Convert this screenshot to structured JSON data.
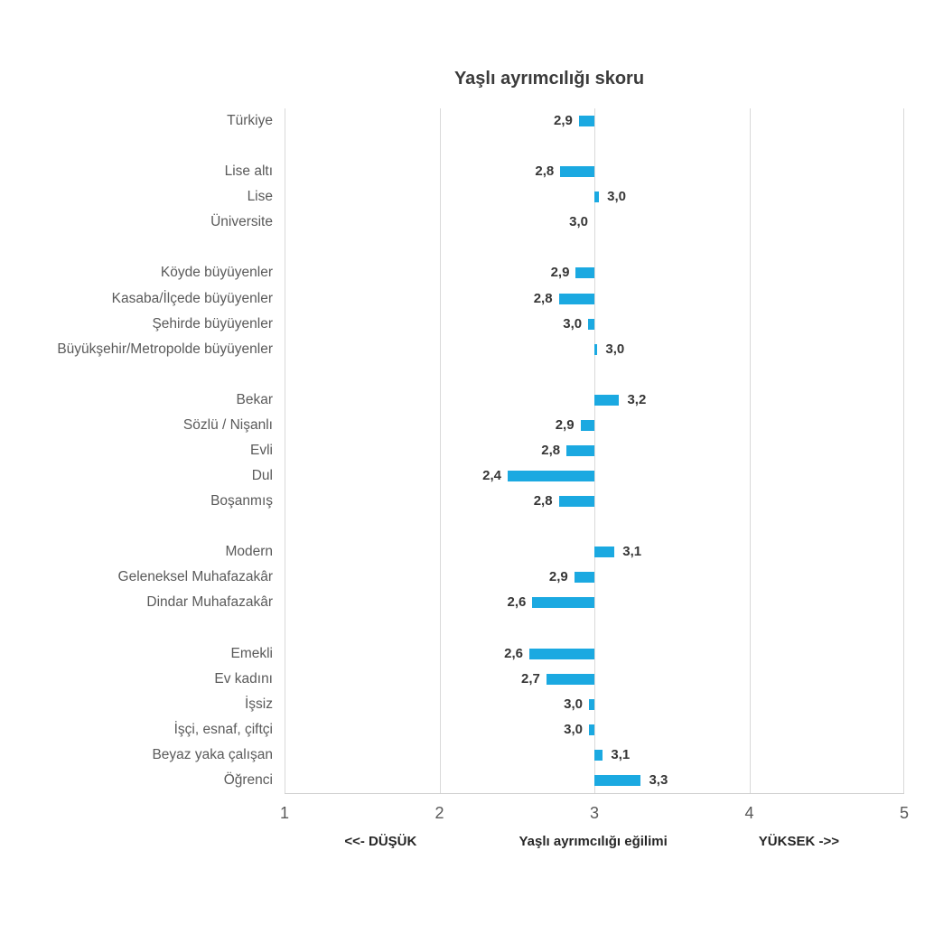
{
  "chart_data": {
    "type": "bar",
    "orientation": "horizontal",
    "title": "Yaşlı ayrımcılığı skoru",
    "bar_base": 3,
    "bar_color": "#1BA9E1",
    "grid": true,
    "axis": {
      "min": 1,
      "max": 5,
      "ticks": [
        "1",
        "2",
        "3",
        "4",
        "5"
      ],
      "caption_left": "<<- DÜŞÜK",
      "caption_center": "Yaşlı ayrımcılığı eğilimi",
      "caption_right": "YÜKSEK ->>"
    },
    "groups": [
      {
        "items": [
          {
            "label": "Türkiye",
            "value": 2.9,
            "display": "2,9",
            "bar": 2.9
          }
        ]
      },
      {
        "items": [
          {
            "label": "Lise altı",
            "value": 2.8,
            "display": "2,8",
            "bar": 2.78
          },
          {
            "label": "Lise",
            "value": 3.0,
            "display": "3,0",
            "bar": 3.03
          },
          {
            "label": "Üniversite",
            "value": 3.0,
            "display": "3,0",
            "bar": 3.0
          }
        ]
      },
      {
        "items": [
          {
            "label": "Köyde büyüyenler",
            "value": 2.9,
            "display": "2,9",
            "bar": 2.88
          },
          {
            "label": "Kasaba/İlçede büyüyenler",
            "value": 2.8,
            "display": "2,8",
            "bar": 2.77
          },
          {
            "label": "Şehirde büyüyenler",
            "value": 3.0,
            "display": "3,0",
            "bar": 2.96
          },
          {
            "label": "Büyükşehir/Metropolde büyüyenler",
            "value": 3.0,
            "display": "3,0",
            "bar": 3.02
          }
        ]
      },
      {
        "items": [
          {
            "label": "Bekar",
            "value": 3.2,
            "display": "3,2",
            "bar": 3.16
          },
          {
            "label": "Sözlü / Nişanlı",
            "value": 2.9,
            "display": "2,9",
            "bar": 2.91
          },
          {
            "label": "Evli",
            "value": 2.8,
            "display": "2,8",
            "bar": 2.82
          },
          {
            "label": "Dul",
            "value": 2.4,
            "display": "2,4",
            "bar": 2.44
          },
          {
            "label": "Boşanmış",
            "value": 2.8,
            "display": "2,8",
            "bar": 2.77
          }
        ]
      },
      {
        "items": [
          {
            "label": "Modern",
            "value": 3.1,
            "display": "3,1",
            "bar": 3.13
          },
          {
            "label": "Geleneksel Muhafazakâr",
            "value": 2.9,
            "display": "2,9",
            "bar": 2.87
          },
          {
            "label": "Dindar Muhafazakâr",
            "value": 2.6,
            "display": "2,6",
            "bar": 2.6
          }
        ]
      },
      {
        "items": [
          {
            "label": "Emekli",
            "value": 2.6,
            "display": "2,6",
            "bar": 2.58
          },
          {
            "label": "Ev kadını",
            "value": 2.7,
            "display": "2,7",
            "bar": 2.69
          },
          {
            "label": "İşsiz",
            "value": 3.0,
            "display": "3,0",
            "bar": 2.965
          },
          {
            "label": "İşçi, esnaf, çiftçi",
            "value": 3.0,
            "display": "3,0",
            "bar": 2.965
          },
          {
            "label": "Beyaz yaka çalışan",
            "value": 3.1,
            "display": "3,1",
            "bar": 3.055
          },
          {
            "label": "Öğrenci",
            "value": 3.3,
            "display": "3,3",
            "bar": 3.3
          }
        ]
      }
    ]
  }
}
